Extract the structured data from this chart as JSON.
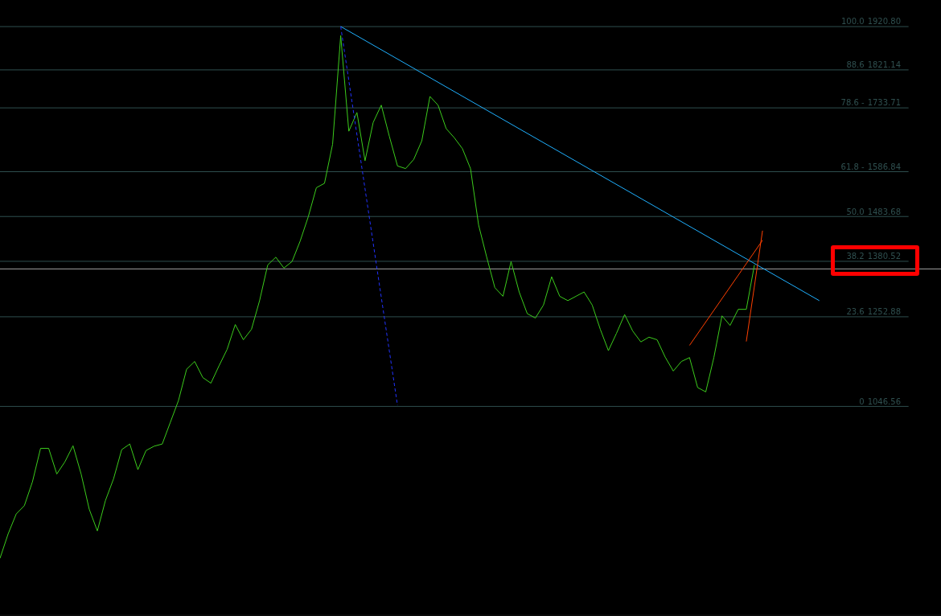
{
  "chart_data": {
    "type": "line",
    "tick_labels": "y",
    "legend": false,
    "grid": false,
    "marker": "none",
    "ylim": [
      566,
      1982
    ],
    "yticks": [
      {
        "value": 1920.8,
        "label": "1920.80"
      },
      1821.14,
      1733.71,
      1586.84,
      1483.68,
      1380.52,
      1252.88,
      1046.56
    ],
    "annotations": [
      {
        "text": "100.0",
        "y": 1920.8
      },
      {
        "text": "88.6",
        "y": 1821.14
      },
      {
        "text": "78.6 -",
        "y": 1733.71
      },
      {
        "text": "61.8 -",
        "y": 1586.84
      },
      {
        "text": "50.0",
        "y": 1483.68
      },
      {
        "text": "38.2",
        "y": 1380.52
      },
      {
        "text": "23.6",
        "y": 1252.88
      },
      {
        "text": "0",
        "y": 1046.56
      }
    ],
    "categories": [
      null,
      null,
      null,
      null,
      null,
      null,
      null,
      null,
      null,
      null,
      null,
      null,
      null,
      null,
      null,
      null,
      null,
      null,
      null,
      null,
      null,
      null,
      null,
      null,
      null,
      null,
      null,
      null,
      null,
      null,
      null,
      null,
      null,
      null,
      null,
      null,
      null,
      null,
      null,
      null,
      null,
      null,
      null,
      null,
      null,
      null,
      null,
      null,
      null,
      null,
      null,
      null,
      null,
      null,
      null,
      null,
      null,
      null,
      null,
      null,
      null,
      null,
      null,
      null,
      null,
      null,
      null,
      null,
      null,
      null,
      null,
      null,
      null,
      null,
      null,
      null,
      null,
      null,
      null,
      null,
      null,
      null,
      null,
      null,
      null,
      null,
      null,
      null,
      null,
      null,
      null,
      null,
      null,
      null,
      null,
      null,
      null,
      null,
      null,
      null,
      null,
      null,
      null,
      null,
      null,
      null,
      null,
      null,
      null,
      null,
      null,
      null,
      null,
      null,
      null,
      null,
      null
    ],
    "series": [
      {
        "color": "#3ccc1c",
        "values": [
          697,
          753,
          799,
          818,
          873,
          950,
          950,
          891,
          919,
          956,
          891,
          810,
          760,
          830,
          880,
          947,
          960,
          901,
          945,
          955,
          960,
          1010,
          1060,
          1132,
          1150,
          1113,
          1100,
          1140,
          1178,
          1235,
          1200,
          1224,
          1290,
          1372,
          1390,
          1365,
          1380,
          1427,
          1483,
          1550,
          1560,
          1650,
          1900,
          1680,
          1723,
          1612,
          1700,
          1740,
          1668,
          1600,
          1594,
          1615,
          1658,
          1760,
          1740,
          1686,
          1665,
          1640,
          1594,
          1464,
          1390,
          1320,
          1300,
          1380,
          1310,
          1260,
          1250,
          1280,
          1345,
          1300,
          1290,
          1300,
          1310,
          1280,
          1224,
          1175,
          1215,
          1258,
          1220,
          1195,
          1206,
          1200,
          1160,
          1128,
          1150,
          1159,
          1090,
          1080,
          1159,
          1255,
          1233,
          1270,
          1270,
          1372,
          null,
          null,
          null,
          null,
          null,
          null,
          null,
          null,
          null,
          null,
          null,
          null,
          null,
          null,
          null,
          null,
          null,
          null,
          null,
          null,
          null,
          null,
          null
        ]
      },
      {
        "color": "#1fb0ff",
        "values": [
          null,
          null,
          null,
          null,
          null,
          null,
          null,
          null,
          null,
          null,
          null,
          null,
          null,
          null,
          null,
          null,
          null,
          null,
          null,
          null,
          null,
          null,
          null,
          null,
          null,
          null,
          null,
          null,
          null,
          null,
          null,
          null,
          null,
          null,
          null,
          null,
          null,
          null,
          null,
          null,
          null,
          null,
          1921,
          null,
          null,
          null,
          null,
          null,
          null,
          null,
          null,
          null,
          null,
          null,
          null,
          null,
          null,
          null,
          null,
          null,
          null,
          null,
          null,
          null,
          null,
          null,
          null,
          null,
          null,
          null,
          null,
          null,
          null,
          null,
          null,
          null,
          null,
          null,
          null,
          null,
          null,
          null,
          null,
          null,
          null,
          null,
          null,
          null,
          null,
          null,
          null,
          null,
          null,
          null,
          null,
          null,
          null,
          null,
          null,
          null,
          null,
          1290,
          null,
          null,
          null,
          null,
          null,
          null,
          null,
          null,
          null,
          null,
          null,
          null,
          null,
          null,
          null
        ]
      },
      {
        "color": "#2233ff",
        "line_style": "dashed",
        "values": [
          null,
          null,
          null,
          null,
          null,
          null,
          null,
          null,
          null,
          null,
          null,
          null,
          null,
          null,
          null,
          null,
          null,
          null,
          null,
          null,
          null,
          null,
          null,
          null,
          null,
          null,
          null,
          null,
          null,
          null,
          null,
          null,
          null,
          null,
          null,
          null,
          null,
          null,
          null,
          null,
          null,
          null,
          1921,
          null,
          null,
          null,
          null,
          null,
          null,
          1049,
          null,
          null,
          null,
          null,
          null,
          null,
          null,
          null,
          null,
          null,
          null,
          null,
          null,
          null,
          null,
          null,
          null,
          null,
          null,
          null,
          null,
          null,
          null,
          null,
          null,
          null,
          null,
          null,
          null,
          null,
          null,
          null,
          null,
          null,
          null,
          null,
          null,
          null,
          null,
          null,
          null,
          null,
          null,
          null,
          null,
          null,
          null,
          null,
          null,
          null,
          null,
          null,
          null,
          null,
          null,
          null,
          null,
          null,
          null,
          null,
          null,
          null,
          null,
          null,
          null,
          null,
          null
        ]
      },
      {
        "color": "#ff4000",
        "values": [
          null,
          null,
          null,
          null,
          null,
          null,
          null,
          null,
          null,
          null,
          null,
          null,
          null,
          null,
          null,
          null,
          null,
          null,
          null,
          null,
          null,
          null,
          null,
          null,
          null,
          null,
          null,
          null,
          null,
          null,
          null,
          null,
          null,
          null,
          null,
          null,
          null,
          null,
          null,
          null,
          null,
          null,
          null,
          null,
          null,
          null,
          null,
          null,
          null,
          null,
          null,
          null,
          null,
          null,
          null,
          null,
          null,
          null,
          null,
          null,
          null,
          null,
          null,
          null,
          null,
          null,
          null,
          null,
          null,
          null,
          null,
          null,
          null,
          null,
          null,
          null,
          null,
          null,
          null,
          null,
          null,
          null,
          null,
          null,
          null,
          1187,
          null,
          null,
          null,
          null,
          null,
          null,
          null,
          null,
          1429,
          null,
          null,
          null,
          null,
          null,
          null,
          null,
          null,
          null,
          null,
          null,
          null,
          null,
          null,
          null,
          null,
          null,
          null,
          null,
          null,
          null,
          null
        ]
      },
      {
        "color": "#ff4000",
        "values": [
          null,
          null,
          null,
          null,
          null,
          null,
          null,
          null,
          null,
          null,
          null,
          null,
          null,
          null,
          null,
          null,
          null,
          null,
          null,
          null,
          null,
          null,
          null,
          null,
          null,
          null,
          null,
          null,
          null,
          null,
          null,
          null,
          null,
          null,
          null,
          null,
          null,
          null,
          null,
          null,
          null,
          null,
          null,
          null,
          null,
          null,
          null,
          null,
          null,
          null,
          null,
          null,
          null,
          null,
          null,
          null,
          null,
          null,
          null,
          null,
          null,
          null,
          null,
          null,
          null,
          null,
          null,
          null,
          null,
          null,
          null,
          null,
          null,
          null,
          null,
          null,
          null,
          null,
          null,
          null,
          null,
          null,
          null,
          null,
          null,
          null,
          null,
          null,
          null,
          null,
          null,
          null,
          1196,
          null,
          1451,
          null,
          null,
          null,
          null,
          null,
          null,
          null,
          null,
          null,
          null,
          null,
          null,
          null,
          null,
          null,
          null,
          null,
          null,
          null,
          null,
          null,
          null
        ]
      }
    ],
    "ref_lines": [
      {
        "axis": "y",
        "value": 1920.8,
        "color": "#2f4f4f"
      },
      {
        "axis": "y",
        "value": 1821.14,
        "color": "#2f4f4f"
      },
      {
        "axis": "y",
        "value": 1733.71,
        "color": "#2f4f4f"
      },
      {
        "axis": "y",
        "value": 1586.84,
        "color": "#2f4f4f"
      },
      {
        "axis": "y",
        "value": 1483.68,
        "color": "#2f4f4f"
      },
      {
        "axis": "y",
        "value": 1380.52,
        "color": "#2f4f4f"
      },
      {
        "axis": "y",
        "value": 1252.88,
        "color": "#2f4f4f"
      },
      {
        "axis": "y",
        "value": 1046.56,
        "color": "#2f4f4f"
      },
      {
        "axis": "y",
        "value": 1363,
        "color": "#a0a0a0"
      }
    ]
  }
}
